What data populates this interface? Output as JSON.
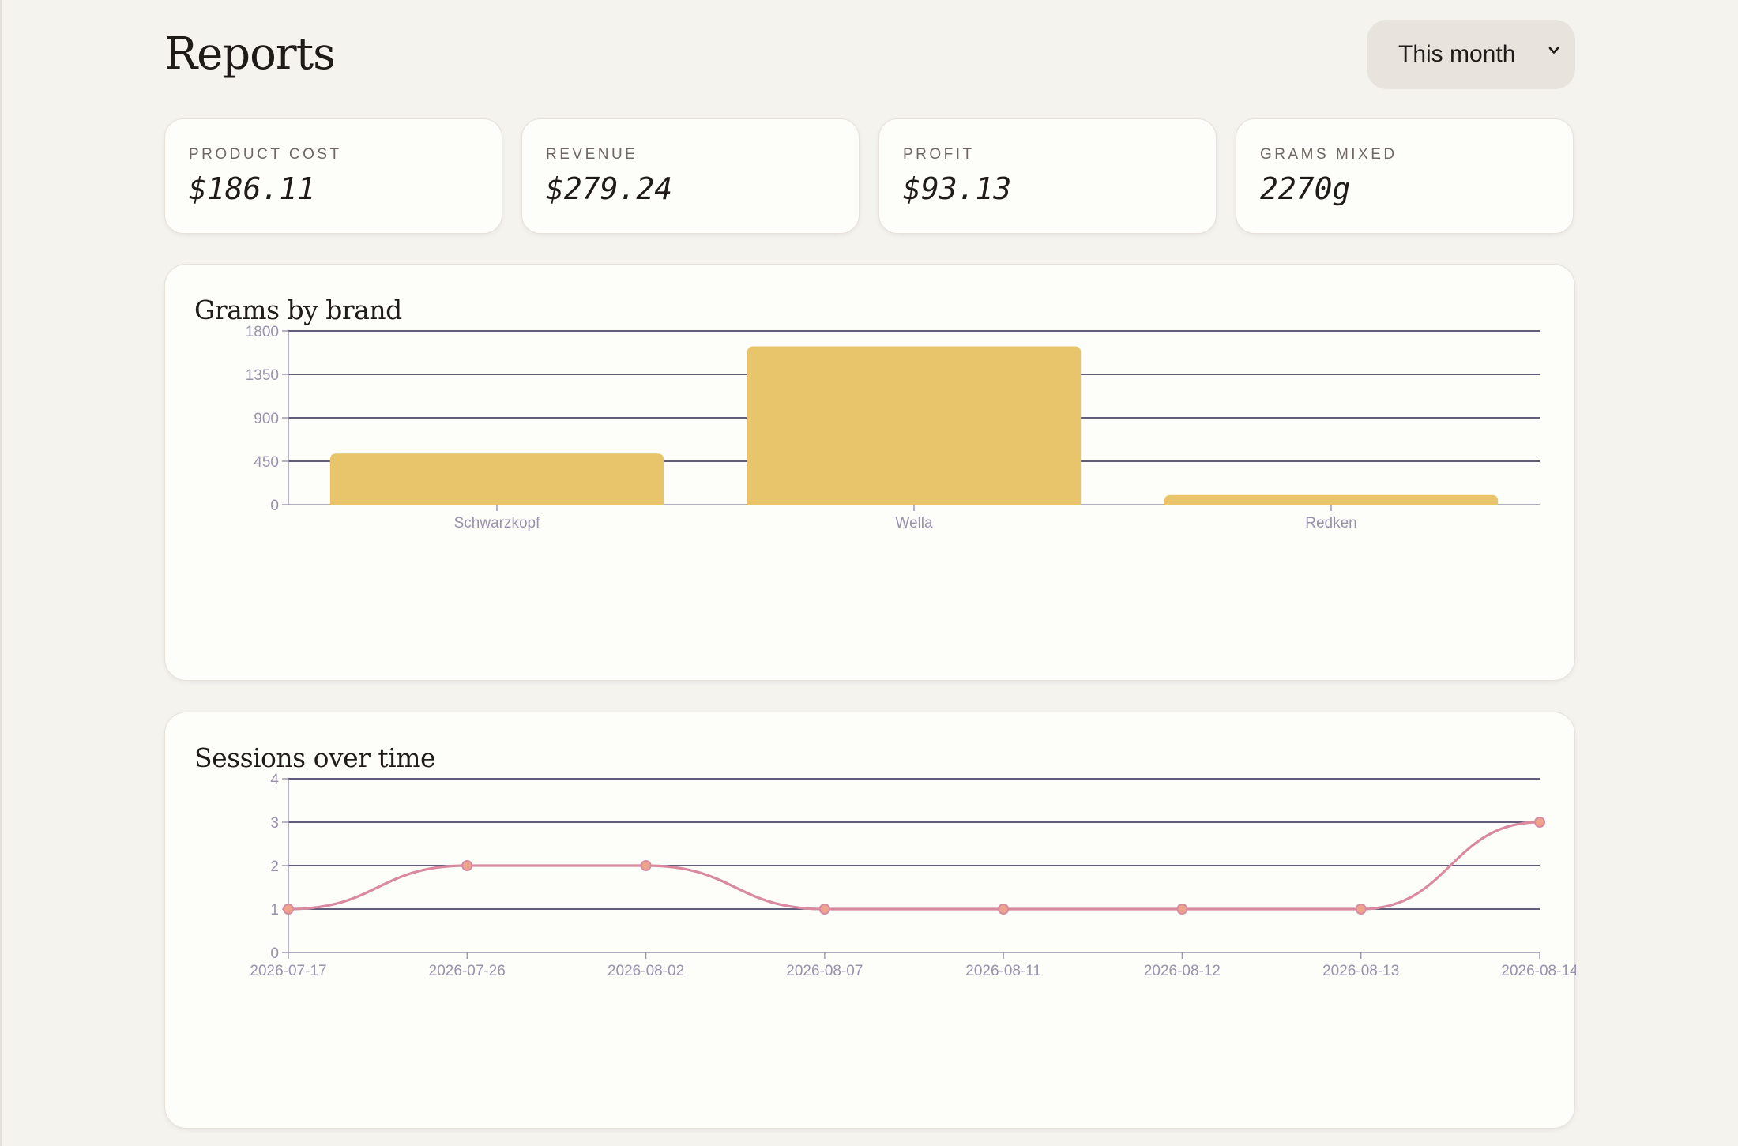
{
  "header": {
    "title": "Reports"
  },
  "period_select": {
    "value": "This month"
  },
  "stats": [
    {
      "label": "PRODUCT COST",
      "value": "$186.11"
    },
    {
      "label": "REVENUE",
      "value": "$279.24"
    },
    {
      "label": "PROFIT",
      "value": "$93.13"
    },
    {
      "label": "GRAMS MIXED",
      "value": "2270g"
    }
  ],
  "charts": {
    "bar_title": "Grams by brand",
    "line_title": "Sessions over time"
  },
  "colors": {
    "bar_fill": "#e8c46a",
    "line_stroke": "#d98aa0",
    "point_fill": "#eda48a",
    "grid": "#2d2a52",
    "axis_text": "#9a92ad"
  },
  "chart_data": [
    {
      "type": "bar",
      "title": "Grams by brand",
      "categories": [
        "Schwarzkopf",
        "Wella",
        "Redken"
      ],
      "values": [
        530,
        1640,
        100
      ],
      "yticks": [
        0,
        450,
        900,
        1350,
        1800
      ],
      "ylim": [
        0,
        1800
      ],
      "grid": true
    },
    {
      "type": "line",
      "title": "Sessions over time",
      "x": [
        "2026-07-17",
        "2026-07-26",
        "2026-08-02",
        "2026-08-07",
        "2026-08-11",
        "2026-08-12",
        "2026-08-13",
        "2026-08-14"
      ],
      "values": [
        1,
        2,
        2,
        1,
        1,
        1,
        1,
        3
      ],
      "yticks": [
        0,
        1,
        2,
        3,
        4
      ],
      "ylim": [
        0,
        4
      ],
      "grid": true
    }
  ]
}
